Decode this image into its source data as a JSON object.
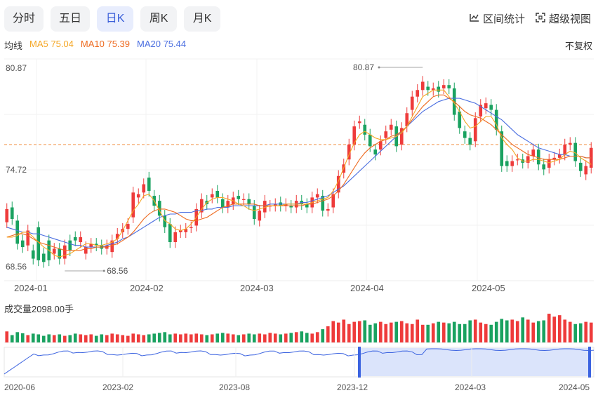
{
  "tabs": [
    {
      "label": "分时",
      "active": false
    },
    {
      "label": "五日",
      "active": false
    },
    {
      "label": "日K",
      "active": true
    },
    {
      "label": "周K",
      "active": false
    },
    {
      "label": "月K",
      "active": false
    }
  ],
  "tools": {
    "range_stats": "区间统计",
    "super_view": "超级视图"
  },
  "ma_legend": {
    "label": "均线",
    "ma5": "MA5 75.04",
    "ma10": "MA10 75.39",
    "ma20": "MA20 75.44"
  },
  "adjust": "不复权",
  "volume_label": "成交量2098.00手",
  "colors": {
    "up": "#ee3b3b",
    "down": "#1aa260",
    "ma5": "#f5a623",
    "ma10": "#ee6a1f",
    "ma20": "#4a6ee0",
    "ref_line": "#f08c3c",
    "nav_fill": "#dbe4fb",
    "nav_line": "#3b63e0"
  },
  "chart_data": {
    "type": "candlestick",
    "y_ticks": [
      "80.87",
      "74.72",
      "68.56"
    ],
    "ylim": [
      68.56,
      80.87
    ],
    "max_annotation": "80.87",
    "min_annotation": "68.56",
    "ref_price": 76.2,
    "x_ticks": [
      "2024-01",
      "2024-02",
      "2024-03",
      "2024-04",
      "2024-05"
    ],
    "candles": [
      [
        71.5,
        72.3
      ],
      [
        72.4,
        71.7
      ],
      [
        71.6,
        70.2
      ],
      [
        70.4,
        70.0
      ],
      [
        70.1,
        71.0
      ],
      [
        69.8,
        69.3
      ],
      [
        71.2,
        69.2
      ],
      [
        69.6,
        69.1
      ],
      [
        70.4,
        69.2
      ],
      [
        69.6,
        69.9
      ],
      [
        69.9,
        69.3
      ],
      [
        69.3,
        70.1
      ],
      [
        70.4,
        69.8
      ],
      [
        70.6,
        70.4
      ],
      [
        70.3,
        70.6
      ],
      [
        69.6,
        70.0
      ],
      [
        70.0,
        70.2
      ],
      [
        70.2,
        70.1
      ],
      [
        70.1,
        69.9
      ],
      [
        69.9,
        70.1
      ],
      [
        69.7,
        70.4
      ],
      [
        70.5,
        70.8
      ],
      [
        70.9,
        71.1
      ],
      [
        71.1,
        71.4
      ],
      [
        71.8,
        73.3
      ],
      [
        73.0,
        73.2
      ],
      [
        73.3,
        73.8
      ],
      [
        74.2,
        73.4
      ],
      [
        73.1,
        72.5
      ],
      [
        72.8,
        71.9
      ],
      [
        71.9,
        71.2
      ],
      [
        71.4,
        70.3
      ],
      [
        70.3,
        70.9
      ],
      [
        70.9,
        71.0
      ],
      [
        70.9,
        71.1
      ],
      [
        71.2,
        71.2
      ],
      [
        71.3,
        72.3
      ],
      [
        72.1,
        72.9
      ],
      [
        72.8,
        72.6
      ],
      [
        73.0,
        73.2
      ],
      [
        73.4,
        73.0
      ],
      [
        72.9,
        72.4
      ],
      [
        72.4,
        72.8
      ],
      [
        72.6,
        73.0
      ],
      [
        73.1,
        72.9
      ],
      [
        72.9,
        72.9
      ],
      [
        72.9,
        72.6
      ],
      [
        72.5,
        71.7
      ],
      [
        71.6,
        72.2
      ],
      [
        72.1,
        72.8
      ],
      [
        72.5,
        72.5
      ],
      [
        72.5,
        72.6
      ],
      [
        72.7,
        72.5
      ],
      [
        72.5,
        72.6
      ],
      [
        72.5,
        72.4
      ],
      [
        72.4,
        72.8
      ],
      [
        72.8,
        72.6
      ],
      [
        72.6,
        72.4
      ],
      [
        72.4,
        73.0
      ],
      [
        73.0,
        73.2
      ],
      [
        73.1,
        72.2
      ],
      [
        72.2,
        72.3
      ],
      [
        72.4,
        73.2
      ],
      [
        73.3,
        74.3
      ],
      [
        74.5,
        75.0
      ],
      [
        75.3,
        76.2
      ],
      [
        76.2,
        77.3
      ],
      [
        77.5,
        77.6
      ],
      [
        77.4,
        76.8
      ],
      [
        76.8,
        76.1
      ],
      [
        75.9,
        75.6
      ],
      [
        75.9,
        76.4
      ],
      [
        76.6,
        77.0
      ],
      [
        77.1,
        77.4
      ],
      [
        77.3,
        76.1
      ],
      [
        76.2,
        77.2
      ],
      [
        77.3,
        78.1
      ],
      [
        78.3,
        79.1
      ],
      [
        79.1,
        79.5
      ],
      [
        79.5,
        80.0
      ],
      [
        79.7,
        79.5
      ],
      [
        79.5,
        79.6
      ],
      [
        79.7,
        79.4
      ],
      [
        79.6,
        79.8
      ],
      [
        79.8,
        79.6
      ],
      [
        79.6,
        78.0
      ],
      [
        78.2,
        77.2
      ],
      [
        77.0,
        76.6
      ],
      [
        76.6,
        76.2
      ],
      [
        76.4,
        77.8
      ],
      [
        77.9,
        78.6
      ],
      [
        78.4,
        78.7
      ],
      [
        78.6,
        78.3
      ],
      [
        78.3,
        77.1
      ],
      [
        77.0,
        74.9
      ],
      [
        75.2,
        74.9
      ],
      [
        74.9,
        75.2
      ],
      [
        75.3,
        75.3
      ],
      [
        75.3,
        75.1
      ],
      [
        75.1,
        75.5
      ],
      [
        75.5,
        75.9
      ],
      [
        75.9,
        75.0
      ],
      [
        75.0,
        74.7
      ],
      [
        74.8,
        75.3
      ],
      [
        75.3,
        75.4
      ],
      [
        75.4,
        75.6
      ],
      [
        75.6,
        76.2
      ],
      [
        76.2,
        76.3
      ],
      [
        76.3,
        75.2
      ],
      [
        75.1,
        74.6
      ],
      [
        74.4,
        74.9
      ],
      [
        74.8,
        76.0
      ]
    ],
    "ma5": [
      70.6,
      70.6,
      70.7,
      70.9,
      70.9,
      70.6,
      70.3,
      70.0,
      69.8,
      69.5,
      69.4,
      69.5,
      69.6,
      69.8,
      70.0,
      70.2,
      70.2,
      70.1,
      70.1,
      70.2,
      70.3,
      70.5,
      71.0,
      71.6,
      72.2,
      72.6,
      73.1,
      73.2,
      72.8,
      72.2,
      71.6,
      71.4,
      71.1,
      71.0,
      71.1,
      71.4,
      71.8,
      72.3,
      72.7,
      72.9,
      73.0,
      73.0,
      72.9,
      72.8,
      72.6,
      72.5,
      72.3,
      72.2,
      72.3,
      72.4,
      72.5,
      72.5,
      72.5,
      72.6,
      72.6,
      72.6,
      72.6,
      72.6,
      72.7,
      72.8,
      72.9,
      73.0,
      73.4,
      74.0,
      74.8,
      75.6,
      76.3,
      76.8,
      77.0,
      76.8,
      76.6,
      76.5,
      76.5,
      76.6,
      76.7,
      76.9,
      77.3,
      77.9,
      78.5,
      79.1,
      79.3,
      79.5,
      79.5,
      79.5,
      79.1,
      78.7,
      78.2,
      77.6,
      77.2,
      77.3,
      77.6,
      77.9,
      77.9,
      77.4,
      76.6,
      76.2,
      75.9,
      75.4,
      75.2,
      75.2,
      75.3,
      75.3,
      75.2,
      75.1,
      75.2,
      75.3,
      75.6,
      75.8,
      75.7,
      75.4,
      75.2,
      75.0
    ],
    "ma10": [
      70.6,
      70.7,
      70.8,
      70.8,
      70.7,
      70.5,
      70.3,
      70.2,
      70.1,
      70.0,
      69.9,
      69.8,
      69.8,
      69.8,
      69.8,
      69.9,
      69.9,
      70.0,
      70.0,
      70.0,
      70.1,
      70.2,
      70.4,
      70.6,
      70.9,
      71.3,
      71.7,
      72.0,
      72.2,
      72.3,
      72.3,
      72.2,
      72.1,
      71.9,
      71.7,
      71.6,
      71.6,
      71.7,
      71.8,
      72.0,
      72.2,
      72.4,
      72.5,
      72.6,
      72.6,
      72.6,
      72.6,
      72.6,
      72.5,
      72.5,
      72.5,
      72.5,
      72.5,
      72.5,
      72.5,
      72.5,
      72.5,
      72.6,
      72.6,
      72.7,
      72.8,
      72.9,
      73.1,
      73.4,
      73.8,
      74.3,
      74.8,
      75.3,
      75.7,
      76.0,
      76.2,
      76.4,
      76.5,
      76.7,
      76.8,
      77.0,
      77.3,
      77.7,
      78.1,
      78.5,
      78.8,
      79.1,
      79.2,
      79.2,
      79.0,
      78.8,
      78.5,
      78.2,
      78.0,
      77.9,
      77.8,
      77.6,
      77.4,
      77.1,
      76.8,
      76.5,
      76.2,
      76.0,
      75.8,
      75.6,
      75.5,
      75.4,
      75.3,
      75.3,
      75.3,
      75.3,
      75.4,
      75.5,
      75.5,
      75.5,
      75.4,
      75.4
    ],
    "ma20": [
      71.2,
      71.1,
      71.0,
      70.9,
      70.9,
      70.8,
      70.8,
      70.7,
      70.6,
      70.5,
      70.4,
      70.3,
      70.2,
      70.1,
      70.1,
      70.0,
      70.0,
      70.0,
      70.0,
      70.1,
      70.2,
      70.3,
      70.5,
      70.6,
      70.8,
      71.0,
      71.2,
      71.4,
      71.6,
      71.8,
      71.9,
      72.0,
      72.0,
      72.1,
      72.1,
      72.1,
      72.2,
      72.2,
      72.3,
      72.3,
      72.4,
      72.4,
      72.4,
      72.5,
      72.5,
      72.5,
      72.5,
      72.5,
      72.5,
      72.5,
      72.6,
      72.6,
      72.6,
      72.6,
      72.6,
      72.6,
      72.7,
      72.7,
      72.8,
      72.9,
      73.0,
      73.1,
      73.3,
      73.5,
      73.7,
      74.0,
      74.3,
      74.6,
      74.9,
      75.2,
      75.5,
      75.8,
      76.1,
      76.4,
      76.7,
      77.0,
      77.3,
      77.6,
      77.9,
      78.2,
      78.4,
      78.6,
      78.8,
      78.9,
      79.0,
      79.0,
      79.0,
      78.9,
      78.8,
      78.7,
      78.5,
      78.3,
      78.1,
      77.9,
      77.7,
      77.4,
      77.1,
      76.8,
      76.6,
      76.4,
      76.2,
      76.0,
      75.9,
      75.8,
      75.7,
      75.6,
      75.6,
      75.5,
      75.5,
      75.5,
      75.4,
      75.4
    ],
    "volume": [
      30,
      20,
      28,
      25,
      20,
      24,
      22,
      18,
      22,
      20,
      22,
      18,
      20,
      24,
      22,
      20,
      22,
      18,
      22,
      20,
      24,
      22,
      20,
      18,
      24,
      22,
      20,
      22,
      24,
      26,
      28,
      22,
      24,
      22,
      24,
      22,
      24,
      22,
      20,
      22,
      24,
      26,
      24,
      22,
      20,
      22,
      24,
      22,
      24,
      22,
      26,
      24,
      22,
      24,
      26,
      28,
      30,
      26,
      24,
      28,
      36,
      44,
      58,
      54,
      62,
      50,
      56,
      58,
      60,
      48,
      52,
      56,
      50,
      54,
      56,
      58,
      52,
      50,
      62,
      48,
      48,
      52,
      56,
      54,
      52,
      56,
      50,
      50,
      60,
      62,
      54,
      50,
      48,
      56,
      64,
      60,
      62,
      58,
      68,
      62,
      54,
      58,
      60,
      78,
      70,
      74,
      62,
      56,
      50,
      52,
      56,
      54
    ],
    "volume_unit_max": 80,
    "nav": {
      "x_ticks": [
        "2020-06",
        "2023-02",
        "2023-08",
        "2023-12",
        "2024-03",
        "2024-05"
      ]
    }
  }
}
